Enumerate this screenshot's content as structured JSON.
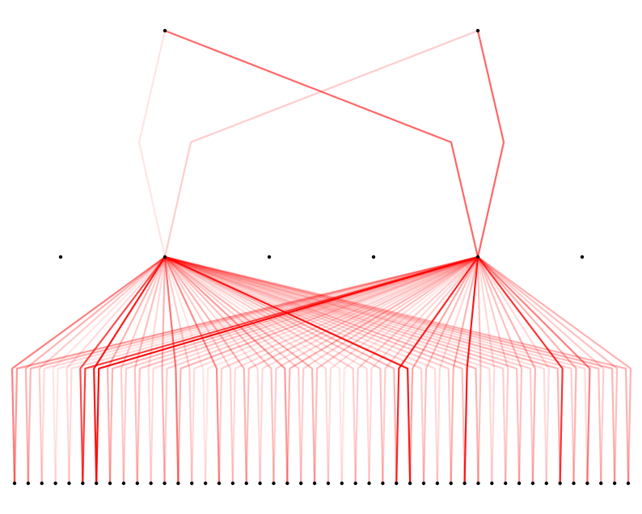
{
  "diagram": {
    "type": "layered-network",
    "edge_color": "#ff0000",
    "node_color": "#000000",
    "layers": [
      {
        "name": "top",
        "node_count": 2
      },
      {
        "name": "middle",
        "node_count": 6
      },
      {
        "name": "bottom",
        "node_count": 46
      }
    ],
    "edges": [
      {
        "from": "top-0",
        "to": "middle-1",
        "strength": 0.1
      },
      {
        "from": "top-0",
        "to": "middle-4",
        "strength": 0.6
      },
      {
        "from": "top-1",
        "to": "middle-1",
        "strength": 0.2
      },
      {
        "from": "top-1",
        "to": "middle-4",
        "strength": 0.6
      }
    ],
    "hub_edges": [
      {
        "hub": "middle-1",
        "targets": [
          0,
          1,
          2,
          3,
          4,
          5,
          6,
          7,
          8,
          9,
          10,
          11,
          12,
          13,
          14,
          15,
          16,
          17,
          18,
          19,
          20,
          21,
          22,
          23,
          24,
          25,
          26,
          27,
          28,
          29,
          30,
          31,
          32,
          33,
          34,
          35,
          36,
          37,
          38,
          39,
          40,
          41,
          42,
          43,
          44,
          45
        ],
        "strengths": [
          0.5,
          0.3,
          0.2,
          0.1,
          0.15,
          0.7,
          0.9,
          0.3,
          0.2,
          0.25,
          0.15,
          0.3,
          0.55,
          0.2,
          0.1,
          0.45,
          0.2,
          0.3,
          0.15,
          0.25,
          0.4,
          0.2,
          0.3,
          0.15,
          0.1,
          0.2,
          0.15,
          0.25,
          0.3,
          0.9,
          0.2,
          0.15,
          0.2,
          0.25,
          0.3,
          0.15,
          0.2,
          0.25,
          0.2,
          0.15,
          0.3,
          0.2,
          0.15,
          0.25,
          0.3,
          0.3
        ]
      },
      {
        "hub": "middle-4",
        "targets": [
          0,
          1,
          2,
          3,
          4,
          5,
          6,
          7,
          8,
          9,
          10,
          11,
          12,
          13,
          14,
          15,
          16,
          17,
          18,
          19,
          20,
          21,
          22,
          23,
          24,
          25,
          26,
          27,
          28,
          29,
          30,
          31,
          32,
          33,
          34,
          35,
          36,
          37,
          38,
          39,
          40,
          41,
          42,
          43,
          44,
          45
        ],
        "strengths": [
          0.4,
          0.3,
          0.15,
          0.1,
          0.15,
          0.75,
          0.95,
          0.3,
          0.2,
          0.25,
          0.15,
          0.2,
          0.3,
          0.15,
          0.1,
          0.2,
          0.15,
          0.25,
          0.15,
          0.2,
          0.3,
          0.2,
          0.25,
          0.15,
          0.1,
          0.2,
          0.15,
          0.2,
          0.85,
          0.35,
          0.25,
          0.15,
          0.3,
          0.9,
          0.25,
          0.15,
          0.2,
          0.25,
          0.3,
          0.15,
          0.8,
          0.3,
          0.5,
          0.2,
          0.25,
          0.3
        ]
      }
    ]
  }
}
